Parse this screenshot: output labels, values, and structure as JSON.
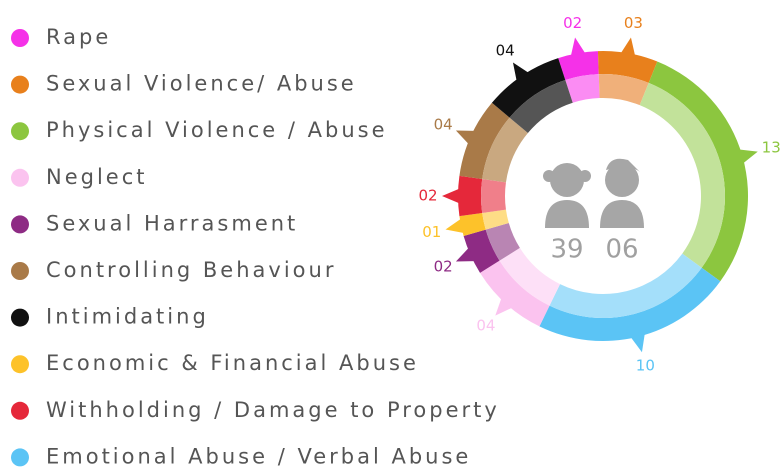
{
  "chart_data": {
    "type": "donut",
    "legend": {
      "names": [
        "Rape",
        "Sexual Violence/ Abuse",
        "Physical Violence / Abuse",
        "Neglect",
        "Sexual Harrasment",
        "Controlling Behaviour",
        "Intimidating",
        "Economic & Financial Abuse",
        "Withholding / Damage to Property",
        "Emotional Abuse / Verbal Abuse"
      ],
      "colors": [
        "#f531e8",
        "#e8801c",
        "#8cc63f",
        "#fbc3ef",
        "#8e2b84",
        "#a97a48",
        "#111111",
        "#fdc22a",
        "#e5283a",
        "#5bc4f5"
      ]
    },
    "ring": {
      "values": [
        2,
        3,
        13,
        10,
        4,
        2,
        1,
        2,
        4,
        4
      ],
      "value_labels": [
        "02",
        "03",
        "13",
        "10",
        "04",
        "02",
        "01",
        "02",
        "04",
        "04"
      ],
      "colors": [
        "#f531e8",
        "#e8801c",
        "#8cc63f",
        "#5bc4f5",
        "#fbc3ef",
        "#8e2b84",
        "#fdc22a",
        "#e5283a",
        "#a97a48",
        "#111111"
      ],
      "light_colors": [
        "#fb8cf3",
        "#f0b07a",
        "#c2e29a",
        "#a4dffa",
        "#fde0f7",
        "#b985b3",
        "#fedd86",
        "#f07f8a",
        "#c9a880",
        "#555555"
      ]
    },
    "center_labels": [
      "39",
      "06"
    ]
  }
}
